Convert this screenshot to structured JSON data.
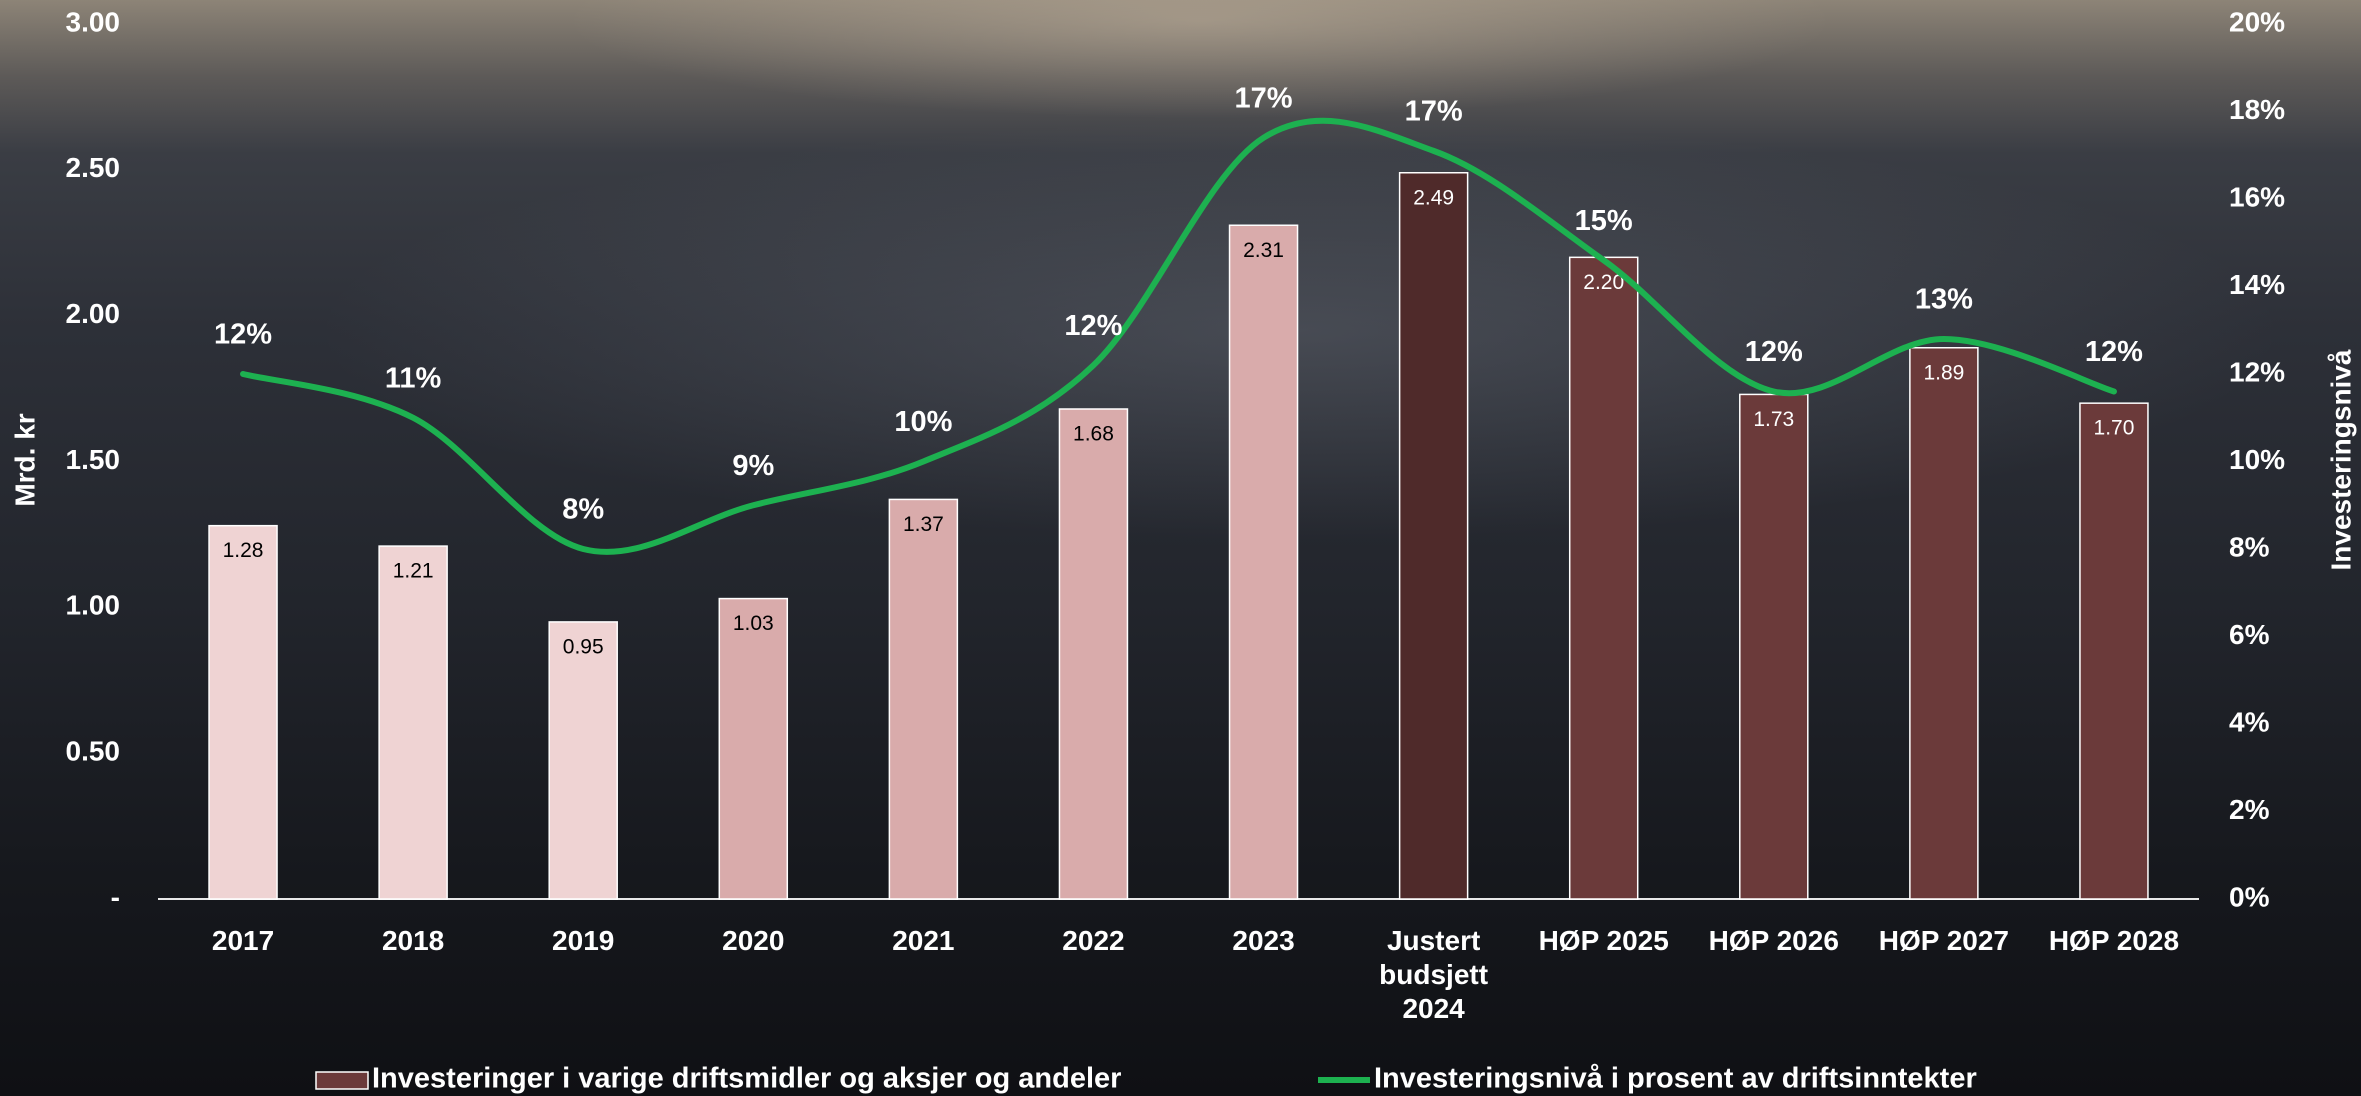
{
  "chart_data": {
    "type": "bar",
    "categories": [
      "2017",
      "2018",
      "2019",
      "2020",
      "2021",
      "2022",
      "2023",
      "Justert budsjett 2024",
      "HØP 2025",
      "HØP 2026",
      "HØP 2027",
      "HØP 2028"
    ],
    "ylabel": "Mrd. kr",
    "y2label": "Investeringsnivå",
    "ylim": [
      0,
      3
    ],
    "yticks": [
      {
        "value": 0,
        "label": "-"
      },
      {
        "value": 0.5,
        "label": "0.50"
      },
      {
        "value": 1,
        "label": "1.00"
      },
      {
        "value": 1.5,
        "label": "1.50"
      },
      {
        "value": 2,
        "label": "2.00"
      },
      {
        "value": 2.5,
        "label": "2.50"
      },
      {
        "value": 3,
        "label": "3.00"
      }
    ],
    "y2lim": [
      0,
      20
    ],
    "y2ticks": [
      {
        "value": 0,
        "label": "0%"
      },
      {
        "value": 2,
        "label": "2%"
      },
      {
        "value": 4,
        "label": "4%"
      },
      {
        "value": 6,
        "label": "6%"
      },
      {
        "value": 8,
        "label": "8%"
      },
      {
        "value": 10,
        "label": "10%"
      },
      {
        "value": 12,
        "label": "12%"
      },
      {
        "value": 14,
        "label": "14%"
      },
      {
        "value": 16,
        "label": "16%"
      },
      {
        "value": 18,
        "label": "18%"
      },
      {
        "value": 20,
        "label": "20%"
      }
    ],
    "legend": "bottom",
    "series": [
      {
        "name": "Investeringer i varige driftsmidler og aksjer og andeler",
        "type": "bar",
        "color": "#6b3a3a",
        "colors": [
          "#efd3d3",
          "#efd3d3",
          "#efd3d3",
          "#d9abab",
          "#d9abab",
          "#d9abab",
          "#d9abab",
          "#4f2a2a",
          "#6b3a3a",
          "#6b3a3a",
          "#6b3a3a",
          "#6b3a3a"
        ],
        "values": [
          1.28,
          1.21,
          0.95,
          1.03,
          1.37,
          1.68,
          2.31,
          2.49,
          2.2,
          1.73,
          1.89,
          1.7
        ],
        "value_labels": [
          "1.28",
          "1.21",
          "0.95",
          "1.03",
          "1.37",
          "1.68",
          "2.31",
          "2.49",
          "2.20",
          "1.73",
          "1.89",
          "1.70"
        ]
      },
      {
        "name": "Investeringsnivå i prosent av driftsinntekter",
        "type": "line",
        "axis": "y2",
        "color": "#1db150",
        "values": [
          12,
          11,
          8,
          9,
          10,
          12.2,
          17.4,
          17.1,
          14.6,
          11.6,
          12.8,
          11.6
        ],
        "value_labels": [
          "12%",
          "11%",
          "8%",
          "9%",
          "10%",
          "12%",
          "17%",
          "17%",
          "15%",
          "12%",
          "13%",
          "12%"
        ]
      }
    ]
  }
}
